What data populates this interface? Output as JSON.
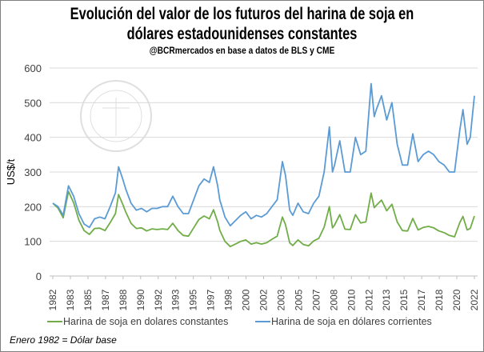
{
  "chart_data": {
    "type": "line",
    "title": "Evolución del valor de los futuros del harina de soja en dólares estadounidenses constantes",
    "title_line1": "Evolución del valor de los futuros del harina de soja en",
    "title_line2": "dólares estadounidenses constantes",
    "subtitle": "@BCRmercados  en base a datos de BLS y CME",
    "ylabel": "US$/t",
    "xlabel": "",
    "ylim": [
      0,
      600
    ],
    "yticks": [
      "0",
      "100",
      "200",
      "300",
      "400",
      "500",
      "600"
    ],
    "xticks": [
      "1982",
      "1983",
      "1985",
      "1987",
      "1988",
      "1990",
      "1992",
      "1993",
      "1995",
      "1997",
      "1998",
      "2000",
      "2002",
      "2003",
      "2005",
      "2007",
      "2008",
      "2010",
      "2012",
      "2013",
      "2015",
      "2017",
      "2018",
      "2020",
      "2022"
    ],
    "grid": true,
    "legend_position": "bottom",
    "x": [
      1982,
      1982.5,
      1983,
      1983.5,
      1984,
      1984.5,
      1985,
      1985.5,
      1986,
      1986.5,
      1987,
      1987.5,
      1988,
      1988.3,
      1988.7,
      1989,
      1989.5,
      1990,
      1990.5,
      1991,
      1991.5,
      1992,
      1992.5,
      1993,
      1993.5,
      1994,
      1994.5,
      1995,
      1995.5,
      1996,
      1996.5,
      1997,
      1997.4,
      1997.8,
      1998,
      1998.5,
      1999,
      1999.5,
      2000,
      2000.5,
      2001,
      2001.5,
      2002,
      2002.5,
      2003,
      2003.5,
      2004,
      2004.3,
      2004.7,
      2005,
      2005.5,
      2006,
      2006.5,
      2007,
      2007.5,
      2008,
      2008.5,
      2008.8,
      2009,
      2009.5,
      2010,
      2010.5,
      2011,
      2011.5,
      2012,
      2012.5,
      2012.8,
      2013,
      2013.5,
      2014,
      2014.5,
      2015,
      2015.5,
      2016,
      2016.5,
      2017,
      2017.5,
      2018,
      2018.5,
      2019,
      2019.5,
      2020,
      2020.5,
      2021,
      2021.3,
      2021.7,
      2022,
      2022.4
    ],
    "series": [
      {
        "name": "Harina de soja en dolares constantes",
        "color": "#70ad47",
        "values": [
          210,
          196,
          168,
          244,
          211,
          161,
          131,
          120,
          137,
          138,
          131,
          154,
          180,
          235,
          207,
          184,
          152,
          137,
          139,
          130,
          136,
          134,
          136,
          134,
          152,
          131,
          117,
          115,
          139,
          163,
          173,
          165,
          191,
          156,
          132,
          100,
          85,
          92,
          100,
          104,
          92,
          96,
          92,
          96,
          106,
          115,
          170,
          148,
          96,
          88,
          104,
          91,
          87,
          101,
          109,
          141,
          200,
          139,
          147,
          177,
          135,
          134,
          177,
          153,
          156,
          239,
          197,
          204,
          219,
          188,
          207,
          156,
          131,
          130,
          166,
          133,
          140,
          143,
          139,
          130,
          125,
          117,
          113,
          154,
          172,
          133,
          137,
          173
        ]
      },
      {
        "name": "Harina de soja en dólares corrientes",
        "color": "#5b9bd5",
        "values": [
          210,
          200,
          175,
          260,
          230,
          180,
          150,
          140,
          165,
          170,
          165,
          200,
          240,
          315,
          280,
          250,
          210,
          190,
          195,
          185,
          195,
          195,
          200,
          200,
          230,
          200,
          180,
          180,
          220,
          260,
          280,
          270,
          315,
          260,
          220,
          170,
          145,
          160,
          175,
          185,
          165,
          175,
          170,
          180,
          200,
          220,
          330,
          290,
          190,
          175,
          210,
          185,
          180,
          210,
          230,
          300,
          430,
          300,
          320,
          390,
          300,
          300,
          400,
          350,
          360,
          555,
          460,
          480,
          520,
          450,
          500,
          380,
          320,
          320,
          410,
          330,
          350,
          360,
          350,
          330,
          320,
          300,
          300,
          420,
          480,
          380,
          400,
          520
        ]
      }
    ],
    "annotation": "Enero 1982 = Dólar base"
  }
}
